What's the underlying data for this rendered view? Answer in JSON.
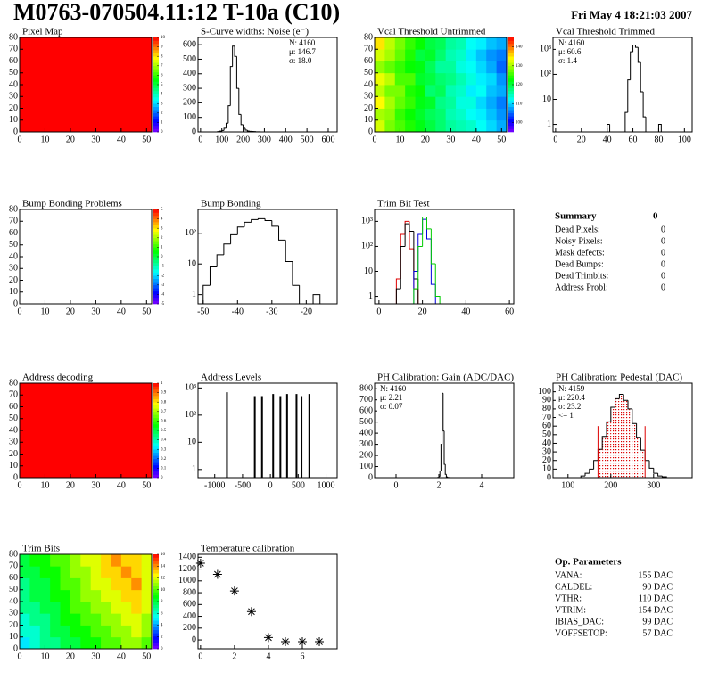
{
  "header": {
    "title": "M0763-070504.11:12 T-10a (C10)",
    "date": "Fri May  4 18:21:03 2007"
  },
  "chart_data": [
    {
      "type": "heatmap",
      "title": "Pixel Map",
      "xlim": [
        0,
        52
      ],
      "ylim": [
        0,
        80
      ],
      "xticks": [
        0,
        10,
        20,
        30,
        40,
        50
      ],
      "yticks": [
        0,
        10,
        20,
        30,
        40,
        50,
        60,
        70,
        80
      ],
      "xbins": [
        0,
        13,
        26,
        39,
        52
      ],
      "ybins": [
        0,
        20,
        40,
        60,
        80
      ],
      "values": [
        [
          10,
          10,
          10,
          10
        ],
        [
          10,
          10,
          10,
          10
        ],
        [
          10,
          10,
          10,
          10
        ],
        [
          10,
          10,
          10,
          10
        ]
      ],
      "zlim": [
        0,
        10
      ],
      "zticks": [
        0,
        1,
        2,
        3,
        4,
        5,
        6,
        7,
        8,
        9,
        10
      ]
    },
    {
      "type": "histogram",
      "title": "S-Curve widths: Noise (e⁻)",
      "xlim": [
        -12,
        642
      ],
      "ylim": [
        0,
        650
      ],
      "xticks": [
        0,
        100,
        200,
        300,
        400,
        500,
        600
      ],
      "yticks": [
        0,
        100,
        200,
        300,
        400,
        500,
        600
      ],
      "bins": [
        80,
        90,
        100,
        110,
        120,
        130,
        140,
        150,
        160,
        170,
        180,
        190,
        200,
        210,
        220,
        230,
        240,
        250,
        260,
        270,
        280
      ],
      "values": [
        2,
        5,
        10,
        25,
        60,
        180,
        450,
        590,
        520,
        300,
        120,
        50,
        25,
        12,
        6,
        4,
        3,
        2,
        1,
        1
      ],
      "color": "#000000",
      "stats": [
        "N: 4160",
        "μ: 146.7",
        "σ: 18.0"
      ],
      "stats_corner": "top-right"
    },
    {
      "type": "heatmap",
      "title": "Vcal Threshold Untrimmed",
      "xlim": [
        0,
        52
      ],
      "ylim": [
        0,
        80
      ],
      "xticks": [
        0,
        10,
        20,
        30,
        40,
        50
      ],
      "yticks": [
        0,
        10,
        20,
        30,
        40,
        50,
        60,
        70,
        80
      ],
      "xbins": [
        0,
        4,
        8,
        12,
        16,
        20,
        24,
        28,
        32,
        36,
        40,
        44,
        48,
        52
      ],
      "ybins": [
        0,
        10,
        20,
        30,
        40,
        50,
        60,
        70,
        80
      ],
      "values": [
        [
          132,
          128,
          126,
          124,
          122,
          120,
          118,
          116,
          115,
          114,
          112,
          110,
          108
        ],
        [
          130,
          129,
          125,
          123,
          121,
          119,
          118,
          115,
          114,
          112,
          111,
          109,
          107
        ],
        [
          134,
          130,
          127,
          125,
          122,
          121,
          117,
          116,
          113,
          113,
          110,
          108,
          106
        ],
        [
          131,
          128,
          128,
          124,
          123,
          118,
          119,
          115,
          114,
          111,
          112,
          109,
          108
        ],
        [
          133,
          131,
          126,
          126,
          121,
          120,
          118,
          117,
          115,
          113,
          111,
          110,
          107
        ],
        [
          129,
          127,
          125,
          123,
          122,
          119,
          116,
          116,
          113,
          112,
          110,
          108,
          105
        ],
        [
          132,
          130,
          127,
          124,
          120,
          121,
          118,
          115,
          114,
          111,
          109,
          107,
          106
        ],
        [
          135,
          131,
          128,
          125,
          123,
          120,
          119,
          116,
          115,
          112,
          111,
          109,
          108
        ]
      ],
      "zlim": [
        95,
        145
      ],
      "zticks": [
        100,
        110,
        120,
        130,
        140
      ]
    },
    {
      "type": "histogram",
      "title": "Vcal Threshold Trimmed",
      "xlim": [
        -2,
        106
      ],
      "ylim": [
        0.5,
        3000
      ],
      "log_y": true,
      "xticks": [
        0,
        20,
        40,
        60,
        80,
        100
      ],
      "yticks": [
        1,
        10,
        {
          "value": 100,
          "label": "10²"
        },
        {
          "value": 1000,
          "label": "10³"
        }
      ],
      "bins": [
        40,
        42,
        44,
        46,
        48,
        50,
        52,
        54,
        56,
        58,
        60,
        62,
        64,
        66,
        68,
        70,
        72,
        74,
        76,
        78,
        80,
        82
      ],
      "values": [
        1,
        0,
        0,
        0,
        0,
        0,
        0,
        3,
        60,
        800,
        1500,
        1200,
        300,
        20,
        2,
        0,
        0,
        0,
        0,
        0,
        1
      ],
      "color": "#000000",
      "stats": [
        "N: 4160",
        "μ: 60.6",
        "σ:  1.4"
      ],
      "stats_corner": "top-left"
    },
    {
      "type": "heatmap",
      "title": "Bump Bonding Problems",
      "xlim": [
        0,
        52
      ],
      "ylim": [
        0,
        80
      ],
      "xticks": [
        0,
        10,
        20,
        30,
        40,
        50
      ],
      "yticks": [
        0,
        10,
        20,
        30,
        40,
        50,
        60,
        70,
        80
      ],
      "zlim": [
        -5,
        5
      ],
      "zticks": [
        -5,
        -4,
        -3,
        -2,
        -1,
        0,
        1,
        2,
        3,
        4,
        5
      ]
    },
    {
      "type": "histogram",
      "title": "Bump Bonding",
      "xlim": [
        -51.5,
        -11
      ],
      "ylim": [
        0.5,
        600
      ],
      "log_y": true,
      "xticks": [
        -50,
        -40,
        -30,
        -20
      ],
      "yticks": [
        1,
        10,
        {
          "value": 100,
          "label": "10²"
        }
      ],
      "bins": [
        -50,
        -48,
        -46,
        -44,
        -42,
        -40,
        -38,
        -36,
        -34,
        -32,
        -30,
        -28,
        -26,
        -24,
        -22,
        -20,
        -18,
        -16
      ],
      "values": [
        2,
        8,
        20,
        45,
        90,
        160,
        230,
        280,
        300,
        260,
        170,
        60,
        12,
        2,
        0,
        0,
        1
      ],
      "color": "#000000"
    },
    {
      "type": "histogram",
      "title": "Trim Bit Test",
      "xlim": [
        -2,
        62
      ],
      "ylim": [
        0.5,
        3000
      ],
      "log_y": true,
      "xticks": [
        0,
        20,
        40,
        60
      ],
      "yticks": [
        1,
        10,
        {
          "value": 100,
          "label": "10²"
        },
        {
          "value": 1000,
          "label": "10³"
        }
      ],
      "bins": [
        8,
        10,
        12,
        14,
        16,
        18,
        20,
        22,
        24,
        26,
        28
      ],
      "series": [
        {
          "color": "#dd0000",
          "values": [
            5,
            300,
            1000,
            80,
            2,
            0,
            0,
            0,
            0,
            0
          ]
        },
        {
          "color": "#000000",
          "values": [
            2,
            100,
            800,
            400,
            5,
            0,
            0,
            0,
            0,
            0
          ]
        },
        {
          "color": "#0000dd",
          "values": [
            0,
            0,
            0,
            0,
            10,
            300,
            1200,
            200,
            3,
            0
          ]
        },
        {
          "color": "#00cc00",
          "values": [
            0,
            0,
            0,
            0,
            2,
            100,
            1500,
            500,
            20,
            1
          ]
        }
      ]
    },
    {
      "type": "heatmap",
      "title": "Address decoding",
      "xlim": [
        0,
        52
      ],
      "ylim": [
        0,
        80
      ],
      "xticks": [
        0,
        10,
        20,
        30,
        40,
        50
      ],
      "yticks": [
        0,
        10,
        20,
        30,
        40,
        50,
        60,
        70,
        80
      ],
      "xbins": [
        0,
        13,
        26,
        39,
        52
      ],
      "ybins": [
        0,
        20,
        40,
        60,
        80
      ],
      "values": [
        [
          1,
          1,
          1,
          1
        ],
        [
          1,
          1,
          1,
          1
        ],
        [
          1,
          1,
          1,
          1
        ],
        [
          1,
          1,
          1,
          1
        ]
      ],
      "zlim": [
        0,
        1
      ],
      "zticks": [
        0,
        0.1,
        0.2,
        0.3,
        0.4,
        0.5,
        0.6,
        0.7,
        0.8,
        0.9,
        1
      ]
    },
    {
      "type": "spike",
      "title": "Address Levels",
      "xlim": [
        -1300,
        1200
      ],
      "ylim": [
        0.5,
        1500
      ],
      "log_y": true,
      "xticks": [
        -1000,
        -500,
        0,
        500,
        1000
      ],
      "yticks": [
        1,
        10,
        {
          "value": 100,
          "label": "10²"
        },
        {
          "value": 1000,
          "label": "10³"
        }
      ],
      "x": [
        -780,
        -280,
        -150,
        50,
        180,
        300,
        470,
        560,
        700
      ],
      "values": [
        700,
        500,
        500,
        600,
        500,
        600,
        600,
        500,
        600
      ],
      "color": "#000000"
    },
    {
      "type": "histogram",
      "title": "PH Calibration: Gain (ADC/DAC)",
      "xlim": [
        -1,
        5.5
      ],
      "ylim": [
        0,
        850
      ],
      "xticks": [
        0,
        2,
        4
      ],
      "yticks": [
        0,
        100,
        200,
        300,
        400,
        500,
        600,
        700,
        800
      ],
      "bins": [
        1.9,
        1.95,
        2,
        2.05,
        2.1,
        2.15,
        2.2,
        2.25,
        2.3,
        2.35,
        2.4,
        2.45,
        2.5,
        2.55,
        2.6
      ],
      "values": [
        0,
        2,
        10,
        60,
        300,
        760,
        420,
        120,
        30,
        8,
        2,
        1,
        0,
        0
      ],
      "color": "#000000",
      "stats": [
        "N: 4160",
        "μ: 2.21",
        "σ: 0.07"
      ],
      "stats_corner": "top-left"
    },
    {
      "type": "histogram",
      "title": "PH Calibration: Pedestal (DAC)",
      "xlim": [
        65,
        390
      ],
      "ylim": [
        0,
        110
      ],
      "xticks": [
        100,
        200,
        300
      ],
      "yticks": [
        0,
        10,
        20,
        30,
        40,
        50,
        60,
        70,
        80,
        90,
        100
      ],
      "bins": [
        130,
        140,
        150,
        160,
        170,
        180,
        190,
        200,
        210,
        220,
        230,
        240,
        250,
        260,
        270,
        280,
        290,
        300,
        310,
        320,
        330
      ],
      "values": [
        2,
        5,
        10,
        20,
        33,
        48,
        65,
        82,
        92,
        97,
        90,
        80,
        63,
        47,
        32,
        20,
        11,
        5,
        2,
        1
      ],
      "color": "#000000",
      "markers": [
        170,
        280
      ],
      "marker_color": "#dd0000",
      "marker_height": 60,
      "stats": [
        "N: 4159",
        "μ: 220.4",
        "σ: 23.2",
        "<= 1"
      ],
      "stats_colors": [
        "#000000",
        "#dd0000",
        "#dd0000",
        "#000000"
      ],
      "stats_corner": "top-left"
    },
    {
      "type": "heatmap",
      "title": "Trim Bits",
      "xlim": [
        0,
        52
      ],
      "ylim": [
        0,
        80
      ],
      "xticks": [
        0,
        10,
        20,
        30,
        40,
        50
      ],
      "yticks": [
        0,
        10,
        20,
        30,
        40,
        50,
        60,
        70,
        80
      ],
      "xbins": [
        0,
        4,
        8,
        12,
        16,
        20,
        24,
        28,
        32,
        36,
        40,
        44,
        48,
        52
      ],
      "ybins": [
        0,
        10,
        20,
        30,
        40,
        50,
        60,
        70,
        80
      ],
      "values": [
        [
          5,
          6,
          7,
          7,
          8,
          8,
          9,
          9,
          10,
          10,
          11,
          11,
          10
        ],
        [
          6,
          6,
          7,
          8,
          8,
          9,
          9,
          10,
          10,
          11,
          11,
          12,
          11
        ],
        [
          6,
          7,
          7,
          8,
          9,
          9,
          10,
          10,
          11,
          11,
          12,
          12,
          11
        ],
        [
          7,
          7,
          8,
          8,
          9,
          10,
          10,
          11,
          11,
          12,
          12,
          13,
          12
        ],
        [
          7,
          8,
          8,
          9,
          9,
          10,
          11,
          11,
          12,
          12,
          13,
          13,
          12
        ],
        [
          7,
          8,
          8,
          9,
          10,
          10,
          11,
          12,
          12,
          13,
          13,
          14,
          12
        ],
        [
          8,
          8,
          9,
          9,
          10,
          11,
          11,
          12,
          13,
          13,
          14,
          13,
          12
        ],
        [
          8,
          9,
          9,
          10,
          10,
          11,
          12,
          12,
          13,
          14,
          13,
          13,
          12
        ]
      ],
      "zlim": [
        0,
        16
      ],
      "zticks": [
        0,
        2,
        4,
        6,
        8,
        10,
        12,
        14,
        16
      ]
    },
    {
      "type": "scatter",
      "title": "Temperature calibration",
      "xlim": [
        -0.15,
        8.05
      ],
      "ylim": [
        -150,
        1450
      ],
      "xticks": [
        0,
        2,
        4,
        6
      ],
      "yticks": [
        0,
        200,
        400,
        600,
        800,
        1000,
        1200,
        1400
      ],
      "x": [
        0,
        1,
        2,
        3,
        4,
        5,
        6,
        7
      ],
      "values": [
        1300,
        1110,
        830,
        480,
        40,
        -30,
        -30,
        -30
      ],
      "color": "#000000"
    }
  ],
  "summary": {
    "title": "Summary",
    "value": "0",
    "rows": [
      [
        "Dead Pixels:",
        "0"
      ],
      [
        "Noisy Pixels:",
        "0"
      ],
      [
        "Mask defects:",
        "0"
      ],
      [
        "Dead Bumps:",
        "0"
      ],
      [
        "Dead Trimbits:",
        "0"
      ],
      [
        "Address Probl:",
        "0"
      ]
    ]
  },
  "op_parameters": {
    "title": "Op. Parameters",
    "rows": [
      [
        "VANA:",
        "155 DAC"
      ],
      [
        "CALDEL:",
        "90 DAC"
      ],
      [
        "VTHR:",
        "110 DAC"
      ],
      [
        "VTRIM:",
        "154 DAC"
      ],
      [
        "IBIAS_DAC:",
        "99 DAC"
      ],
      [
        "VOFFSETOP:",
        "57 DAC"
      ]
    ]
  }
}
